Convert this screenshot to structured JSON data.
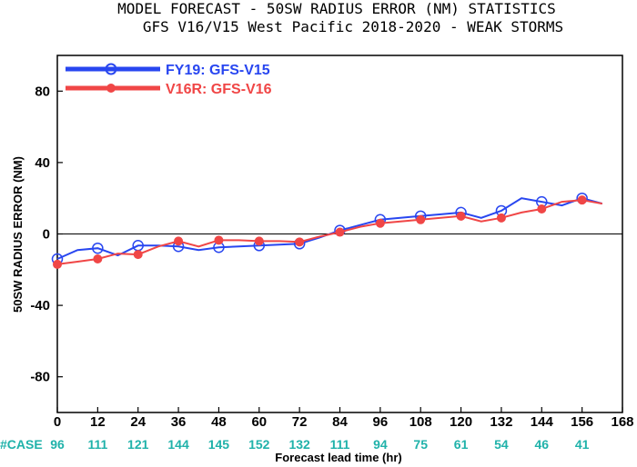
{
  "chart_data": {
    "type": "line",
    "title": "MODEL FORECAST - 50SW RADIUS ERROR (NM) STATISTICS",
    "subtitle": "GFS V16/V15 West Pacific 2018-2020 - WEAK STORMS",
    "xlabel": "Forecast lead time (hr)",
    "ylabel": "50SW RADIUS ERROR (NM)",
    "xlim": [
      0,
      168
    ],
    "ylim": [
      -100,
      100
    ],
    "xticks": [
      0,
      12,
      24,
      36,
      48,
      60,
      72,
      84,
      96,
      108,
      120,
      132,
      144,
      156,
      168
    ],
    "yticks": [
      -80,
      -40,
      0,
      40,
      80
    ],
    "legend_position": "top-left",
    "case_label": "#CASE",
    "case_x": [
      0,
      12,
      24,
      36,
      48,
      60,
      72,
      84,
      96,
      108,
      120,
      132,
      144,
      156
    ],
    "case_counts": [
      "96",
      "111",
      "121",
      "144",
      "145",
      "152",
      "132",
      "111",
      "94",
      "75",
      "61",
      "54",
      "46",
      "41"
    ],
    "series": [
      {
        "name": "FY19: GFS-V15",
        "color": "#2846f0",
        "x": [
          0,
          6,
          12,
          18,
          24,
          30,
          36,
          42,
          48,
          54,
          60,
          66,
          72,
          78,
          84,
          90,
          96,
          102,
          108,
          114,
          120,
          126,
          132,
          138,
          144,
          150,
          156,
          162
        ],
        "y": [
          -14,
          -9,
          -8,
          -12,
          -6.5,
          -6.5,
          -7,
          -9,
          -7.5,
          -7,
          -6.5,
          -6,
          -5.5,
          -2,
          2,
          5,
          8,
          9,
          10,
          11,
          12,
          9,
          13,
          20,
          18,
          16,
          20,
          17
        ],
        "marker_x": [
          0,
          12,
          24,
          36,
          48,
          60,
          72,
          84,
          96,
          108,
          120,
          132,
          144,
          156
        ]
      },
      {
        "name": "V16R: GFS-V16",
        "color": "#f04646",
        "x": [
          0,
          6,
          12,
          18,
          24,
          30,
          36,
          42,
          48,
          54,
          60,
          66,
          72,
          78,
          84,
          90,
          96,
          102,
          108,
          114,
          120,
          126,
          132,
          138,
          144,
          150,
          156,
          162
        ],
        "y": [
          -17,
          -15.5,
          -14,
          -11,
          -11.5,
          -7,
          -4,
          -7,
          -3.5,
          -3.5,
          -4,
          -4,
          -4.5,
          -1.5,
          1,
          4,
          6,
          7,
          8,
          9,
          10,
          7,
          9,
          12,
          14,
          18,
          19,
          17
        ],
        "marker_x": [
          0,
          12,
          24,
          36,
          48,
          60,
          72,
          84,
          96,
          108,
          120,
          132,
          144,
          156
        ]
      }
    ]
  }
}
